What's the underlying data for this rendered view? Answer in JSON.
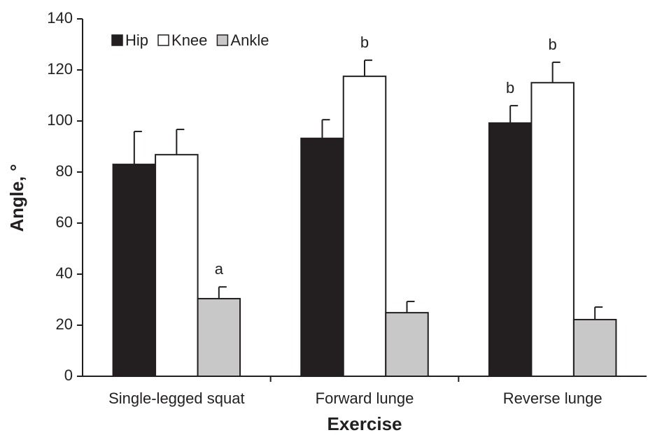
{
  "chart_data": {
    "type": "bar",
    "x_label": "Exercise",
    "y_label": "Angle, °",
    "categories": [
      "Single-legged squat",
      "Forward lunge",
      "Reverse lunge"
    ],
    "series": [
      {
        "name": "Hip",
        "color": "#231f20",
        "values": [
          83,
          93.2,
          99.2
        ],
        "errors": [
          12.9,
          7.3,
          6.8
        ],
        "annotations": [
          null,
          null,
          "b"
        ]
      },
      {
        "name": "Knee",
        "color": "#ffffff",
        "values": [
          86.8,
          117.5,
          115
        ],
        "errors": [
          9.9,
          6.3,
          8
        ],
        "annotations": [
          null,
          "b",
          "b"
        ]
      },
      {
        "name": "Ankle",
        "color": "#c8c8c8",
        "values": [
          30.4,
          24.9,
          22.2
        ],
        "errors": [
          4.6,
          4.4,
          4.9
        ],
        "annotations": [
          "a",
          null,
          null
        ]
      }
    ],
    "ylim": [
      0,
      140
    ],
    "yticks": [
      0,
      20,
      40,
      60,
      80,
      100,
      120,
      140
    ],
    "legend": "upper left"
  }
}
